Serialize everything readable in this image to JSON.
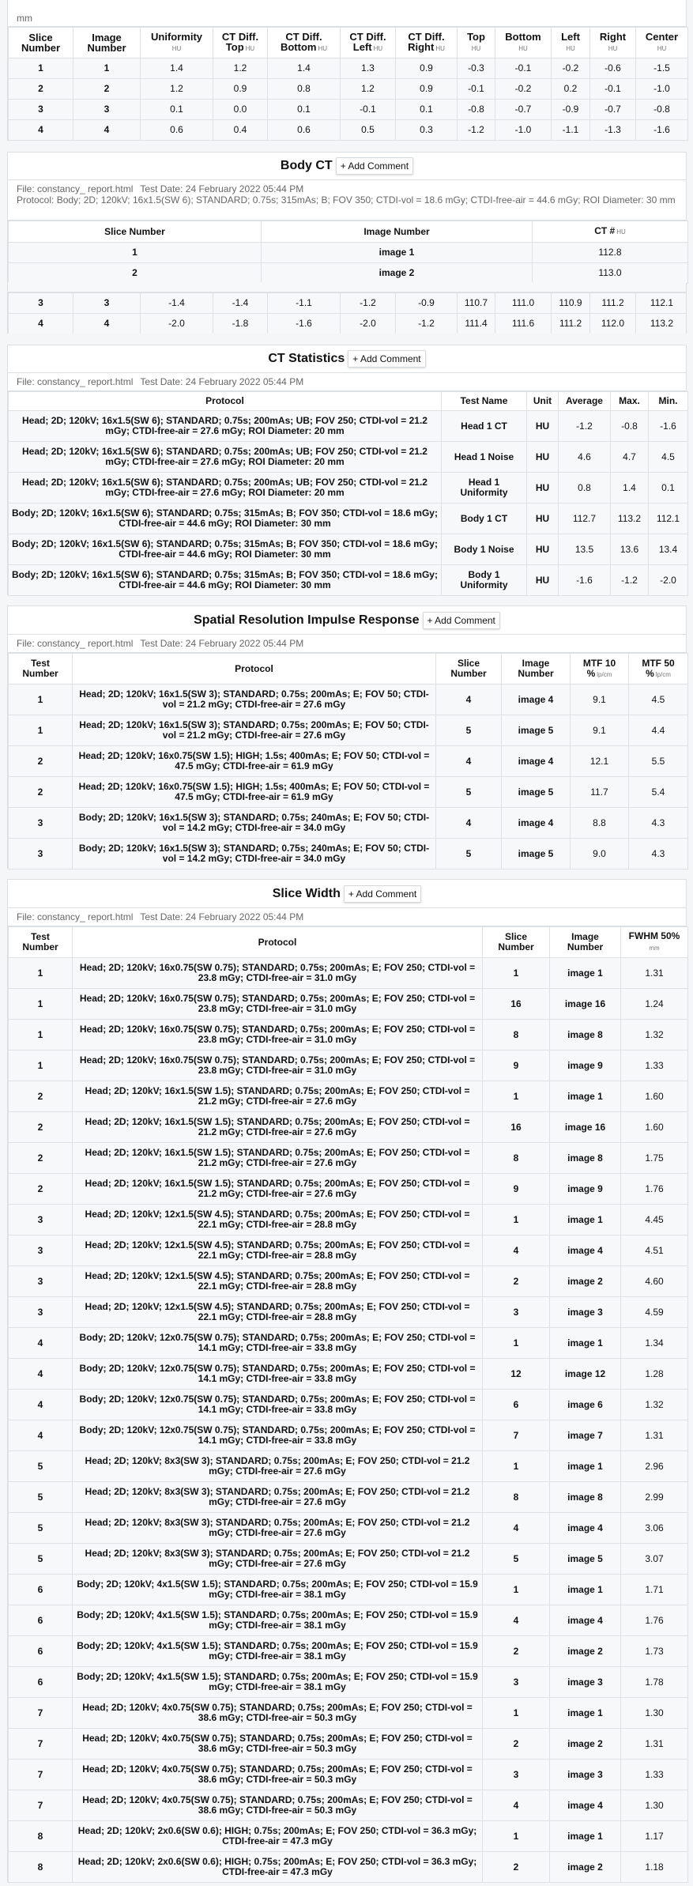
{
  "uniformity_table": {
    "leading_text": "mm",
    "headers": [
      {
        "label": "Slice Number",
        "unit": ""
      },
      {
        "label": "Image Number",
        "unit": ""
      },
      {
        "label": "Uniformity",
        "unit": "HU"
      },
      {
        "label": "CT Diff. Top",
        "unit": "HU"
      },
      {
        "label": "CT Diff. Bottom",
        "unit": "HU"
      },
      {
        "label": "CT Diff. Left",
        "unit": "HU"
      },
      {
        "label": "CT Diff. Right",
        "unit": "HU"
      },
      {
        "label": "Top",
        "unit": "HU"
      },
      {
        "label": "Bottom",
        "unit": "HU"
      },
      {
        "label": "Left",
        "unit": "HU"
      },
      {
        "label": "Right",
        "unit": "HU"
      },
      {
        "label": "Center",
        "unit": "HU"
      }
    ],
    "rows": [
      [
        "1",
        "1",
        "1.4",
        "1.2",
        "1.4",
        "1.3",
        "0.9",
        "-0.3",
        "-0.1",
        "-0.2",
        "-0.6",
        "-1.5"
      ],
      [
        "2",
        "2",
        "1.2",
        "0.9",
        "0.8",
        "1.2",
        "0.9",
        "-0.1",
        "-0.2",
        "0.2",
        "-0.1",
        "-1.0"
      ],
      [
        "3",
        "3",
        "0.1",
        "0.0",
        "0.1",
        "-0.1",
        "0.1",
        "-0.8",
        "-0.7",
        "-0.9",
        "-0.7",
        "-0.8"
      ],
      [
        "4",
        "4",
        "0.6",
        "0.4",
        "0.6",
        "0.5",
        "0.3",
        "-1.2",
        "-1.0",
        "-1.1",
        "-1.3",
        "-1.6"
      ]
    ]
  },
  "body_ct": {
    "title": "Body CT",
    "add_comment": "+ Add Comment",
    "file": "File: constancy_ report.html",
    "test_date": "Test Date: 24 February 2022 05:44 PM",
    "protocol": "Protocol: Body; 2D; 120kV; 16x1.5(SW 6); STANDARD; 0.75s; 315mAs; B; FOV 350; CTDI-vol = 18.6 mGy; CTDI-free-air = 44.6 mGy; ROI Diameter: 30 mm",
    "headers": [
      {
        "label": "Slice Number",
        "unit": ""
      },
      {
        "label": "Image Number",
        "unit": ""
      },
      {
        "label": "CT #",
        "unit": "HU"
      }
    ],
    "rows": [
      [
        "1",
        "image 1",
        "112.8"
      ],
      [
        "2",
        "image 2",
        "113.0"
      ]
    ],
    "overlapping_rows": [
      [
        "3",
        "3",
        "-1.4",
        "-1.4",
        "-1.1",
        "-1.2",
        "-0.9",
        "110.7",
        "111.0",
        "110.9",
        "111.2",
        "112.1"
      ],
      [
        "4",
        "4",
        "-2.0",
        "-1.8",
        "-1.6",
        "-2.0",
        "-1.2",
        "111.4",
        "111.6",
        "111.2",
        "112.0",
        "113.2"
      ]
    ]
  },
  "ct_statistics": {
    "title": "CT Statistics",
    "add_comment": "+ Add Comment",
    "file": "File: constancy_ report.html",
    "test_date": "Test Date: 24 February 2022 05:44 PM",
    "headers": [
      {
        "label": "Protocol",
        "unit": ""
      },
      {
        "label": "Test Name",
        "unit": ""
      },
      {
        "label": "Unit",
        "unit": ""
      },
      {
        "label": "Average",
        "unit": ""
      },
      {
        "label": "Max.",
        "unit": ""
      },
      {
        "label": "Min.",
        "unit": ""
      }
    ],
    "rows": [
      [
        "Head; 2D; 120kV; 16x1.5(SW 6); STANDARD; 0.75s; 200mAs; UB; FOV 250; CTDI-vol = 21.2 mGy; CTDI-free-air = 27.6 mGy; ROI Diameter: 20 mm",
        "Head 1 CT",
        "HU",
        "-1.2",
        "-0.8",
        "-1.6"
      ],
      [
        "Head; 2D; 120kV; 16x1.5(SW 6); STANDARD; 0.75s; 200mAs; UB; FOV 250; CTDI-vol = 21.2 mGy; CTDI-free-air = 27.6 mGy; ROI Diameter: 20 mm",
        "Head 1 Noise",
        "HU",
        "4.6",
        "4.7",
        "4.5"
      ],
      [
        "Head; 2D; 120kV; 16x1.5(SW 6); STANDARD; 0.75s; 200mAs; UB; FOV 250; CTDI-vol = 21.2 mGy; CTDI-free-air = 27.6 mGy; ROI Diameter: 20 mm",
        "Head 1 Uniformity",
        "HU",
        "0.8",
        "1.4",
        "0.1"
      ],
      [
        "Body; 2D; 120kV; 16x1.5(SW 6); STANDARD; 0.75s; 315mAs; B; FOV 350; CTDI-vol = 18.6 mGy; CTDI-free-air = 44.6 mGy; ROI Diameter: 30 mm",
        "Body 1 CT",
        "HU",
        "112.7",
        "113.2",
        "112.1"
      ],
      [
        "Body; 2D; 120kV; 16x1.5(SW 6); STANDARD; 0.75s; 315mAs; B; FOV 350; CTDI-vol = 18.6 mGy; CTDI-free-air = 44.6 mGy; ROI Diameter: 30 mm",
        "Body 1 Noise",
        "HU",
        "13.5",
        "13.6",
        "13.4"
      ],
      [
        "Body; 2D; 120kV; 16x1.5(SW 6); STANDARD; 0.75s; 315mAs; B; FOV 350; CTDI-vol = 18.6 mGy; CTDI-free-air = 44.6 mGy; ROI Diameter: 30 mm",
        "Body 1 Uniformity",
        "HU",
        "-1.6",
        "-1.2",
        "-2.0"
      ]
    ]
  },
  "spatial_resolution": {
    "title": "Spatial Resolution Impulse Response",
    "add_comment": "+ Add Comment",
    "file": "File: constancy_ report.html",
    "test_date": "Test Date: 24 February 2022 05:44 PM",
    "headers": [
      {
        "label": "Test Number",
        "unit": ""
      },
      {
        "label": "Protocol",
        "unit": ""
      },
      {
        "label": "Slice Number",
        "unit": ""
      },
      {
        "label": "Image Number",
        "unit": ""
      },
      {
        "label": "MTF 10 %",
        "unit": "lp/cm"
      },
      {
        "label": "MTF 50 %",
        "unit": "lp/cm"
      }
    ],
    "rows": [
      [
        "1",
        "Head; 2D; 120kV; 16x1.5(SW 3); STANDARD; 0.75s; 200mAs; E; FOV 50; CTDI-vol = 21.2 mGy; CTDI-free-air = 27.6 mGy",
        "4",
        "image 4",
        "9.1",
        "4.5"
      ],
      [
        "1",
        "Head; 2D; 120kV; 16x1.5(SW 3); STANDARD; 0.75s; 200mAs; E; FOV 50; CTDI-vol = 21.2 mGy; CTDI-free-air = 27.6 mGy",
        "5",
        "image 5",
        "9.1",
        "4.4"
      ],
      [
        "2",
        "Head; 2D; 120kV; 16x0.75(SW 1.5); HIGH; 1.5s; 400mAs; E; FOV 50; CTDI-vol = 47.5 mGy; CTDI-free-air = 61.9 mGy",
        "4",
        "image 4",
        "12.1",
        "5.5"
      ],
      [
        "2",
        "Head; 2D; 120kV; 16x0.75(SW 1.5); HIGH; 1.5s; 400mAs; E; FOV 50; CTDI-vol = 47.5 mGy; CTDI-free-air = 61.9 mGy",
        "5",
        "image 5",
        "11.7",
        "5.4"
      ],
      [
        "3",
        "Body; 2D; 120kV; 16x1.5(SW 3); STANDARD; 0.75s; 240mAs; E; FOV 50; CTDI-vol = 14.2 mGy; CTDI-free-air = 34.0 mGy",
        "4",
        "image 4",
        "8.8",
        "4.3"
      ],
      [
        "3",
        "Body; 2D; 120kV; 16x1.5(SW 3); STANDARD; 0.75s; 240mAs; E; FOV 50; CTDI-vol = 14.2 mGy; CTDI-free-air = 34.0 mGy",
        "5",
        "image 5",
        "9.0",
        "4.3"
      ]
    ]
  },
  "slice_width": {
    "title": "Slice Width",
    "add_comment": "+ Add Comment",
    "file": "File: constancy_ report.html",
    "test_date": "Test Date: 24 February 2022 05:44 PM",
    "headers": [
      {
        "label": "Test Number",
        "unit": ""
      },
      {
        "label": "Protocol",
        "unit": ""
      },
      {
        "label": "Slice Number",
        "unit": ""
      },
      {
        "label": "Image Number",
        "unit": ""
      },
      {
        "label": "FWHM 50%",
        "unit": "mm"
      }
    ],
    "rows": [
      [
        "1",
        "Head; 2D; 120kV; 16x0.75(SW 0.75); STANDARD; 0.75s; 200mAs; E; FOV 250; CTDI-vol = 23.8 mGy; CTDI-free-air = 31.0 mGy",
        "1",
        "image 1",
        "1.31"
      ],
      [
        "1",
        "Head; 2D; 120kV; 16x0.75(SW 0.75); STANDARD; 0.75s; 200mAs; E; FOV 250; CTDI-vol = 23.8 mGy; CTDI-free-air = 31.0 mGy",
        "16",
        "image 16",
        "1.24"
      ],
      [
        "1",
        "Head; 2D; 120kV; 16x0.75(SW 0.75); STANDARD; 0.75s; 200mAs; E; FOV 250; CTDI-vol = 23.8 mGy; CTDI-free-air = 31.0 mGy",
        "8",
        "image 8",
        "1.32"
      ],
      [
        "1",
        "Head; 2D; 120kV; 16x0.75(SW 0.75); STANDARD; 0.75s; 200mAs; E; FOV 250; CTDI-vol = 23.8 mGy; CTDI-free-air = 31.0 mGy",
        "9",
        "image 9",
        "1.33"
      ],
      [
        "2",
        "Head; 2D; 120kV; 16x1.5(SW 1.5); STANDARD; 0.75s; 200mAs; E; FOV 250; CTDI-vol = 21.2 mGy; CTDI-free-air = 27.6 mGy",
        "1",
        "image 1",
        "1.60"
      ],
      [
        "2",
        "Head; 2D; 120kV; 16x1.5(SW 1.5); STANDARD; 0.75s; 200mAs; E; FOV 250; CTDI-vol = 21.2 mGy; CTDI-free-air = 27.6 mGy",
        "16",
        "image 16",
        "1.60"
      ],
      [
        "2",
        "Head; 2D; 120kV; 16x1.5(SW 1.5); STANDARD; 0.75s; 200mAs; E; FOV 250; CTDI-vol = 21.2 mGy; CTDI-free-air = 27.6 mGy",
        "8",
        "image 8",
        "1.75"
      ],
      [
        "2",
        "Head; 2D; 120kV; 16x1.5(SW 1.5); STANDARD; 0.75s; 200mAs; E; FOV 250; CTDI-vol = 21.2 mGy; CTDI-free-air = 27.6 mGy",
        "9",
        "image 9",
        "1.76"
      ],
      [
        "3",
        "Head; 2D; 120kV; 12x1.5(SW 4.5); STANDARD; 0.75s; 200mAs; E; FOV 250; CTDI-vol = 22.1 mGy; CTDI-free-air = 28.8 mGy",
        "1",
        "image 1",
        "4.45"
      ],
      [
        "3",
        "Head; 2D; 120kV; 12x1.5(SW 4.5); STANDARD; 0.75s; 200mAs; E; FOV 250; CTDI-vol = 22.1 mGy; CTDI-free-air = 28.8 mGy",
        "4",
        "image 4",
        "4.51"
      ],
      [
        "3",
        "Head; 2D; 120kV; 12x1.5(SW 4.5); STANDARD; 0.75s; 200mAs; E; FOV 250; CTDI-vol = 22.1 mGy; CTDI-free-air = 28.8 mGy",
        "2",
        "image 2",
        "4.60"
      ],
      [
        "3",
        "Head; 2D; 120kV; 12x1.5(SW 4.5); STANDARD; 0.75s; 200mAs; E; FOV 250; CTDI-vol = 22.1 mGy; CTDI-free-air = 28.8 mGy",
        "3",
        "image 3",
        "4.59"
      ],
      [
        "4",
        "Body; 2D; 120kV; 12x0.75(SW 0.75); STANDARD; 0.75s; 200mAs; E; FOV 250; CTDI-vol = 14.1 mGy; CTDI-free-air = 33.8 mGy",
        "1",
        "image 1",
        "1.34"
      ],
      [
        "4",
        "Body; 2D; 120kV; 12x0.75(SW 0.75); STANDARD; 0.75s; 200mAs; E; FOV 250; CTDI-vol = 14.1 mGy; CTDI-free-air = 33.8 mGy",
        "12",
        "image 12",
        "1.28"
      ],
      [
        "4",
        "Body; 2D; 120kV; 12x0.75(SW 0.75); STANDARD; 0.75s; 200mAs; E; FOV 250; CTDI-vol = 14.1 mGy; CTDI-free-air = 33.8 mGy",
        "6",
        "image 6",
        "1.32"
      ],
      [
        "4",
        "Body; 2D; 120kV; 12x0.75(SW 0.75); STANDARD; 0.75s; 200mAs; E; FOV 250; CTDI-vol = 14.1 mGy; CTDI-free-air = 33.8 mGy",
        "7",
        "image 7",
        "1.31"
      ],
      [
        "5",
        "Head; 2D; 120kV; 8x3(SW 3); STANDARD; 0.75s; 200mAs; E; FOV 250; CTDI-vol = 21.2 mGy; CTDI-free-air = 27.6 mGy",
        "1",
        "image 1",
        "2.96"
      ],
      [
        "5",
        "Head; 2D; 120kV; 8x3(SW 3); STANDARD; 0.75s; 200mAs; E; FOV 250; CTDI-vol = 21.2 mGy; CTDI-free-air = 27.6 mGy",
        "8",
        "image 8",
        "2.99"
      ],
      [
        "5",
        "Head; 2D; 120kV; 8x3(SW 3); STANDARD; 0.75s; 200mAs; E; FOV 250; CTDI-vol = 21.2 mGy; CTDI-free-air = 27.6 mGy",
        "4",
        "image 4",
        "3.06"
      ],
      [
        "5",
        "Head; 2D; 120kV; 8x3(SW 3); STANDARD; 0.75s; 200mAs; E; FOV 250; CTDI-vol = 21.2 mGy; CTDI-free-air = 27.6 mGy",
        "5",
        "image 5",
        "3.07"
      ],
      [
        "6",
        "Body; 2D; 120kV; 4x1.5(SW 1.5); STANDARD; 0.75s; 200mAs; E; FOV 250; CTDI-vol = 15.9 mGy; CTDI-free-air = 38.1 mGy",
        "1",
        "image 1",
        "1.71"
      ],
      [
        "6",
        "Body; 2D; 120kV; 4x1.5(SW 1.5); STANDARD; 0.75s; 200mAs; E; FOV 250; CTDI-vol = 15.9 mGy; CTDI-free-air = 38.1 mGy",
        "4",
        "image 4",
        "1.76"
      ],
      [
        "6",
        "Body; 2D; 120kV; 4x1.5(SW 1.5); STANDARD; 0.75s; 200mAs; E; FOV 250; CTDI-vol = 15.9 mGy; CTDI-free-air = 38.1 mGy",
        "2",
        "image 2",
        "1.73"
      ],
      [
        "6",
        "Body; 2D; 120kV; 4x1.5(SW 1.5); STANDARD; 0.75s; 200mAs; E; FOV 250; CTDI-vol = 15.9 mGy; CTDI-free-air = 38.1 mGy",
        "3",
        "image 3",
        "1.78"
      ],
      [
        "7",
        "Head; 2D; 120kV; 4x0.75(SW 0.75); STANDARD; 0.75s; 200mAs; E; FOV 250; CTDI-vol = 38.6 mGy; CTDI-free-air = 50.3 mGy",
        "1",
        "image 1",
        "1.30"
      ],
      [
        "7",
        "Head; 2D; 120kV; 4x0.75(SW 0.75); STANDARD; 0.75s; 200mAs; E; FOV 250; CTDI-vol = 38.6 mGy; CTDI-free-air = 50.3 mGy",
        "2",
        "image 2",
        "1.31"
      ],
      [
        "7",
        "Head; 2D; 120kV; 4x0.75(SW 0.75); STANDARD; 0.75s; 200mAs; E; FOV 250; CTDI-vol = 38.6 mGy; CTDI-free-air = 50.3 mGy",
        "3",
        "image 3",
        "1.33"
      ],
      [
        "7",
        "Head; 2D; 120kV; 4x0.75(SW 0.75); STANDARD; 0.75s; 200mAs; E; FOV 250; CTDI-vol = 38.6 mGy; CTDI-free-air = 50.3 mGy",
        "4",
        "image 4",
        "1.30"
      ],
      [
        "8",
        "Head; 2D; 120kV; 2x0.6(SW 0.6); HIGH; 0.75s; 200mAs; E; FOV 250; CTDI-vol = 36.3 mGy; CTDI-free-air = 47.3 mGy",
        "1",
        "image 1",
        "1.17"
      ],
      [
        "8",
        "Head; 2D; 120kV; 2x0.6(SW 0.6); HIGH; 0.75s; 200mAs; E; FOV 250; CTDI-vol = 36.3 mGy; CTDI-free-air = 47.3 mGy",
        "2",
        "image 2",
        "1.18"
      ]
    ]
  }
}
